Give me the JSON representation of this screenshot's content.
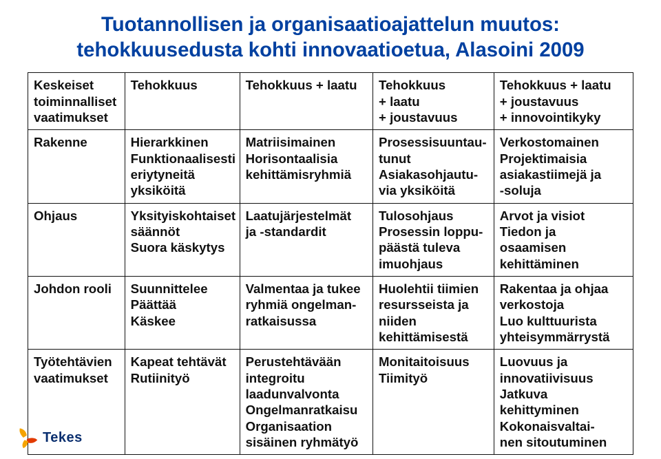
{
  "title_line1": "Tuotannollisen ja organisaatioajattelun muutos:",
  "title_line2": "tehokkuusedusta kohti innovaatioetua, Alasoini 2009",
  "title_color": "#0040a0",
  "title_fontsize_pt": 22,
  "table": {
    "border_color": "#111111",
    "cell_fontsize_pt": 14,
    "column_widths_pct": [
      16,
      19,
      22,
      20,
      23
    ],
    "columns": [
      "rowhead",
      "col_efficiency",
      "col_eff_quality",
      "col_eff_quality_flex",
      "col_eff_quality_flex_innov"
    ],
    "rows": [
      {
        "head": "Keskeiset\ntoiminnalliset\nvaatimukset",
        "c1": "Tehokkuus",
        "c2": "Tehokkuus + laatu",
        "c3": "Tehokkuus\n+ laatu\n+ joustavuus",
        "c4": "Tehokkuus + laatu\n+ joustavuus\n+ innovointikyky"
      },
      {
        "head": "Rakenne",
        "c1": "Hierarkkinen\nFunktionaalisesti\neriytyneitä\nyksiköitä",
        "c2": "Matriisimainen\nHorisontaalisia\nkehittämisryhmiä",
        "c3": "Prosessisuuntau-\ntunut\nAsiakasohjautu-\nvia yksiköitä",
        "c4": "Verkostomainen\nProjektimaisia\nasiakastiimejä ja\n-soluja"
      },
      {
        "head": "Ohjaus",
        "c1": "Yksityiskohtaiset\nsäännöt\nSuora käskytys",
        "c2": "Laatujärjestelmät\nja -standardit",
        "c3": "Tulosohjaus\nProsessin loppu-\npäästä tuleva\nimuohjaus",
        "c4": "Arvot ja visiot\nTiedon ja\nosaamisen\nkehittäminen"
      },
      {
        "head": "Johdon rooli",
        "c1": "Suunnittelee\nPäättää\nKäskee",
        "c2": "Valmentaa ja tukee\nryhmiä ongelman-\nratkaisussa",
        "c3": "Huolehtii tiimien\nresursseista ja\nniiden\nkehittämisestä",
        "c4": "Rakentaa ja ohjaa\nverkostoja\nLuo kulttuurista\nyhteisymmärrystä"
      },
      {
        "head": "Työtehtävien\nvaatimukset",
        "c1": "Kapeat tehtävät\nRutiinityö",
        "c2": "Perustehtävään\nintegroitu\nlaadunvalvonta\nOngelmanratkaisu\nOrganisaation\nsisäinen ryhmätyö",
        "c3": "Monitaitoisuus\nTiimityö",
        "c4": "Luovuus ja\ninnovatiivisuus\nJatkuva\nkehittyminen\nKokonaisvaltai-\nnen sitoutuminen"
      }
    ]
  },
  "logo": {
    "wordmark": "Tekes",
    "wordmark_color": "#0a2f6f",
    "petal_colors": [
      "#f5a300",
      "#e23a00"
    ]
  }
}
